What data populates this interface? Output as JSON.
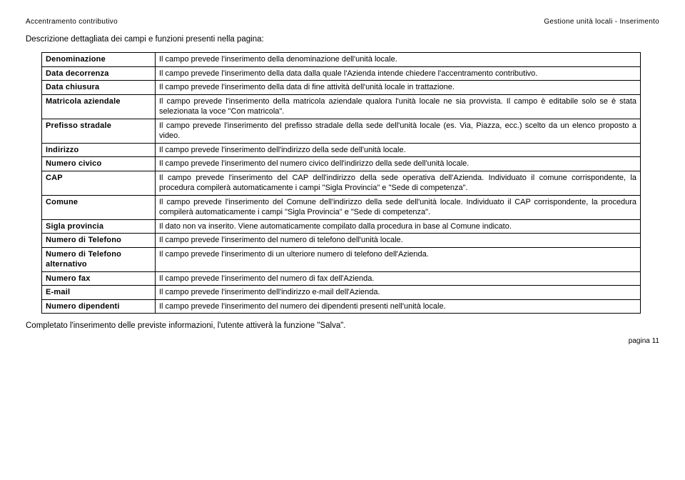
{
  "header": {
    "left": "Accentramento contributivo",
    "right": "Gestione unità locali - Inserimento"
  },
  "intro": "Descrizione dettagliata dei campi e funzioni presenti nella pagina:",
  "rows": [
    {
      "label": "Denominazione",
      "desc": "Il campo prevede l'inserimento della denominazione dell'unità locale."
    },
    {
      "label": "Data decorrenza",
      "desc": "Il campo prevede l'inserimento della data dalla quale l'Azienda intende chiedere l'accentramento contributivo."
    },
    {
      "label": "Data chiusura",
      "desc": "Il campo prevede l'inserimento della data di fine attività dell'unità locale in trattazione."
    },
    {
      "label": "Matricola aziendale",
      "desc": "Il campo prevede l'inserimento della matricola aziendale qualora l'unità locale ne sia provvista. Il campo è editabile solo se è stata selezionata la voce \"Con matricola\"."
    },
    {
      "label": "Prefisso stradale",
      "desc": "Il campo prevede l'inserimento del prefisso stradale della sede dell'unità locale (es. Via, Piazza, ecc.) scelto da un elenco proposto a video."
    },
    {
      "label": "Indirizzo",
      "desc": "Il campo prevede l'inserimento dell'indirizzo della sede dell'unità locale."
    },
    {
      "label": "Numero civico",
      "desc": "Il campo prevede l'inserimento del numero civico dell'indirizzo della sede dell'unità locale."
    },
    {
      "label": "CAP",
      "desc": "Il campo prevede l'inserimento del CAP dell'indirizzo della sede operativa dell'Azienda. Individuato il comune corrispondente, la procedura compilerà automaticamente i campi \"Sigla Provincia\" e \"Sede di competenza\"."
    },
    {
      "label": "Comune",
      "desc": "Il campo prevede l'inserimento del Comune dell'indirizzo della sede dell'unità locale. Individuato il CAP corrispondente, la procedura compilerà automaticamente i campi \"Sigla Provincia\" e \"Sede di competenza\"."
    },
    {
      "label": "Sigla provincia",
      "desc": "Il dato non va inserito. Viene automaticamente compilato dalla procedura in base al Comune indicato."
    },
    {
      "label": "Numero di Telefono",
      "desc": "Il campo prevede l'inserimento del numero di telefono dell'unità locale."
    },
    {
      "label": "Numero di Telefono alternativo",
      "desc": "Il campo prevede l'inserimento di un ulteriore numero di telefono dell'Azienda."
    },
    {
      "label": "Numero fax",
      "desc": "Il campo prevede l'inserimento del numero di fax dell'Azienda."
    },
    {
      "label": "E-mail",
      "desc": "Il campo prevede l'inserimento dell'indirizzo e-mail dell'Azienda."
    },
    {
      "label": "Numero dipendenti",
      "desc": "Il campo prevede l'inserimento del numero dei dipendenti presenti nell'unità locale."
    }
  ],
  "outro": "Completato l'inserimento delle previste informazioni, l'utente attiverà la funzione \"Salva\".",
  "pagenum": "pagina 11"
}
